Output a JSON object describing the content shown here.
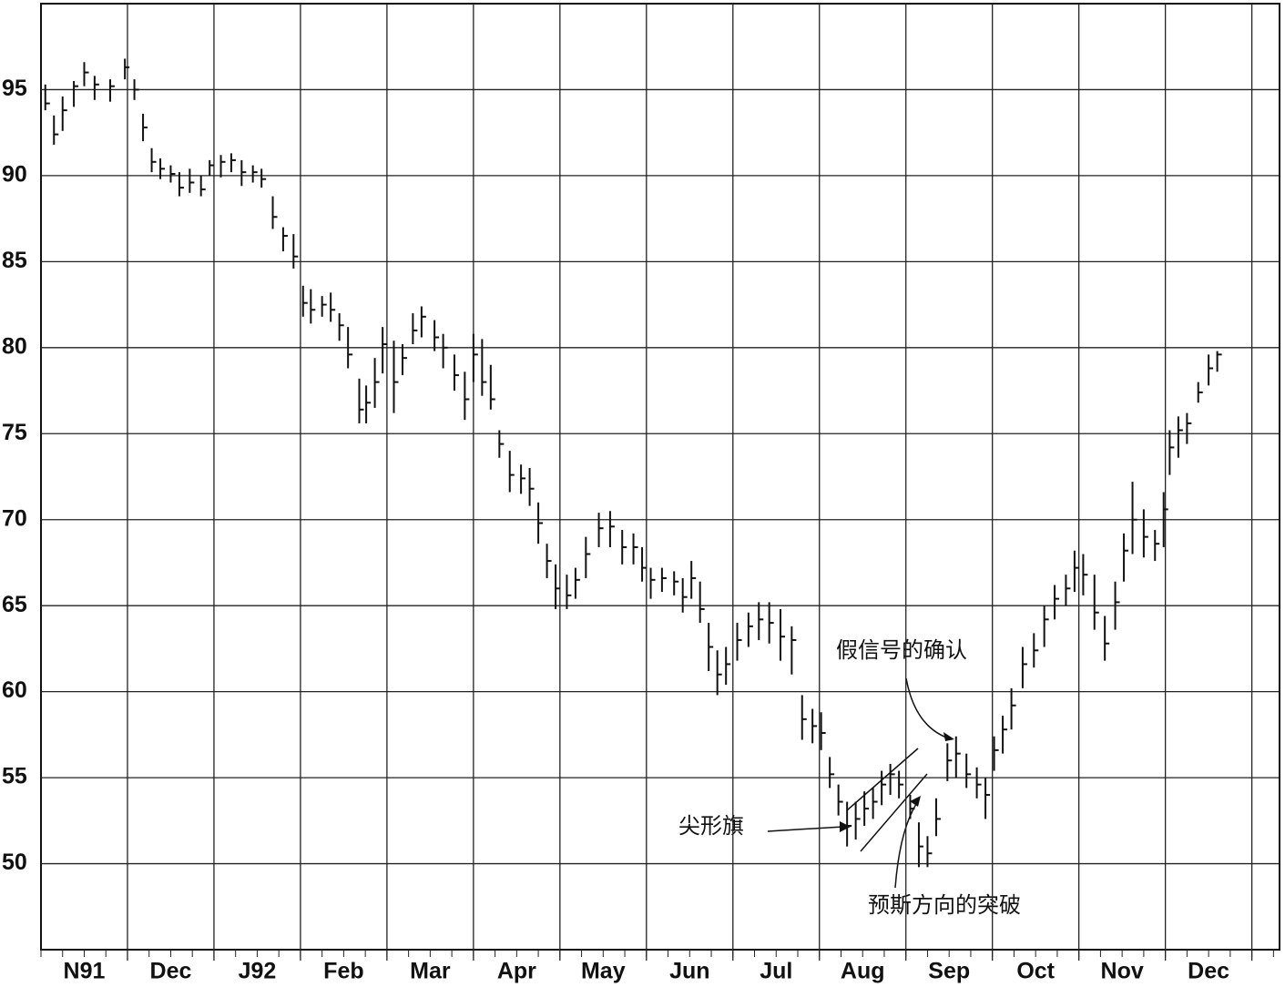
{
  "chart_data": {
    "type": "ohlc",
    "categories": [
      "N91",
      "Dec",
      "J92",
      "Feb",
      "Mar",
      "Apr",
      "May",
      "Jun",
      "Jul",
      "Aug",
      "Sep",
      "Oct",
      "Nov",
      "Dec",
      null
    ],
    "xlim": [
      0,
      14.32
    ],
    "ylim": [
      45,
      100
    ],
    "yticks": [
      50,
      55,
      60,
      65,
      70,
      75,
      80,
      85,
      90,
      95
    ],
    "grid": true,
    "color": "#111111",
    "annotations": [
      "假信号的确认",
      "尖形旗",
      "预斯方向的突破"
    ],
    "x": [
      0.05,
      0.15,
      0.25,
      0.38,
      0.5,
      0.62,
      0.8,
      0.97,
      1.08,
      1.18,
      1.28,
      1.38,
      1.5,
      1.6,
      1.72,
      1.85,
      1.95,
      2.08,
      2.2,
      2.32,
      2.45,
      2.55,
      2.68,
      2.8,
      2.92,
      3.03,
      3.12,
      3.25,
      3.35,
      3.45,
      3.55,
      3.68,
      3.76,
      3.86,
      3.95,
      4.08,
      4.18,
      4.3,
      4.4,
      4.55,
      4.65,
      4.78,
      4.9,
      5.0,
      5.1,
      5.2,
      5.3,
      5.42,
      5.55,
      5.65,
      5.75,
      5.85,
      5.95,
      6.08,
      6.18,
      6.3,
      6.45,
      6.58,
      6.72,
      6.85,
      6.95,
      7.05,
      7.18,
      7.32,
      7.42,
      7.52,
      7.62,
      7.72,
      7.82,
      7.92,
      8.05,
      8.18,
      8.3,
      8.42,
      8.55,
      8.68,
      8.8,
      8.92,
      9.02,
      9.12,
      9.22,
      9.32,
      9.42,
      9.52,
      9.62,
      9.72,
      9.82,
      9.92,
      10.05,
      10.15,
      10.25,
      10.35,
      10.48,
      10.58,
      10.7,
      10.82,
      10.92,
      11.02,
      11.12,
      11.22,
      11.35,
      11.48,
      11.6,
      11.72,
      11.85,
      11.95,
      12.05,
      12.18,
      12.3,
      12.42,
      12.52,
      12.62,
      12.75,
      12.88,
      12.98,
      13.05,
      13.15,
      13.25,
      13.38,
      13.5,
      13.6
    ],
    "high": [
      95.3,
      93.5,
      94.6,
      95.5,
      96.6,
      95.8,
      95.6,
      96.8,
      95.6,
      93.6,
      91.6,
      91,
      90.6,
      90.2,
      90.4,
      90,
      90.9,
      91.2,
      91.3,
      90.9,
      90.6,
      90.4,
      88.8,
      87,
      86.6,
      83.6,
      83.4,
      83,
      83.2,
      82,
      81.2,
      78.2,
      77.8,
      79.4,
      81.2,
      80.4,
      80.2,
      82,
      82.4,
      81.6,
      80.8,
      79.6,
      78.6,
      80.8,
      80.5,
      79,
      75.2,
      74,
      73.2,
      73,
      71,
      68.6,
      67.4,
      66.8,
      67.2,
      69,
      70.4,
      70.5,
      69.4,
      69.2,
      68.4,
      67.2,
      67.2,
      67,
      66.6,
      67.6,
      66.4,
      64,
      62.4,
      62.6,
      64,
      64.6,
      65.2,
      65.2,
      64.8,
      63.8,
      59.8,
      59,
      58.8,
      56.2,
      54.6,
      53.6,
      53.6,
      54.2,
      54.4,
      55.4,
      55.8,
      55.4,
      54,
      52.4,
      51.6,
      53.8,
      57,
      57.4,
      56.4,
      55.6,
      55,
      57.4,
      58.6,
      60.2,
      62.6,
      63.4,
      65,
      66.2,
      66.8,
      68.2,
      68,
      66.8,
      64.4,
      66.4,
      69.2,
      72.2,
      70.6,
      69.4,
      71.6,
      75.2,
      76,
      76.2,
      78,
      79.6,
      79.8
    ],
    "low": [
      93.8,
      91.8,
      92.6,
      94,
      95.2,
      94.4,
      94.3,
      95.6,
      94.4,
      92,
      90.2,
      89.8,
      89.6,
      88.8,
      89,
      88.8,
      90,
      89.9,
      90.2,
      89.4,
      89.6,
      89.3,
      86.9,
      85.6,
      84.6,
      81.8,
      81.4,
      81.8,
      81.5,
      80.4,
      78.8,
      75.6,
      75.6,
      76.5,
      78.5,
      76.2,
      78.4,
      80.2,
      80.6,
      79.8,
      78.8,
      77.5,
      75.8,
      78,
      77.2,
      76.4,
      73.6,
      71.6,
      71.5,
      70.8,
      68.6,
      66.6,
      64.8,
      64.8,
      65.4,
      66.6,
      68.4,
      68.4,
      67.4,
      67.4,
      66.4,
      65.4,
      65.8,
      65.6,
      64.6,
      65.4,
      64,
      61.2,
      59.8,
      60.4,
      61.8,
      62.6,
      63,
      62.8,
      61.8,
      61,
      57.2,
      57,
      56.6,
      54.4,
      52.8,
      51,
      51.4,
      52.2,
      52.6,
      53.4,
      54,
      53.8,
      52.6,
      49.8,
      49.8,
      51.6,
      54.8,
      55,
      54.4,
      53.8,
      52.6,
      55.4,
      56.4,
      57.8,
      60.2,
      61.4,
      62.6,
      64.2,
      65,
      65.8,
      65.6,
      63.6,
      61.8,
      63.6,
      66.4,
      68,
      67.8,
      67.6,
      68.4,
      72.6,
      73.6,
      74.4,
      76.8,
      77.8,
      78.6
    ],
    "close": [
      94.2,
      92.4,
      93.8,
      95.2,
      96,
      95.3,
      95.2,
      96.3,
      95,
      92.8,
      90.8,
      90.4,
      90.1,
      89.3,
      89.6,
      89.2,
      90.6,
      90.8,
      90.9,
      90.2,
      90.2,
      89.8,
      87.6,
      86.5,
      85.3,
      82.6,
      82.2,
      82.5,
      82.2,
      81.3,
      79.6,
      76.4,
      76.8,
      78,
      80.2,
      78,
      79.4,
      81,
      81.8,
      80.6,
      80,
      78.4,
      77,
      79.6,
      78,
      77,
      74.4,
      72.6,
      72.4,
      71.8,
      69.8,
      67.6,
      66,
      65.6,
      66.5,
      68,
      69.5,
      69.6,
      68.4,
      68.4,
      67.2,
      66.5,
      66.6,
      66.4,
      65.5,
      66.6,
      64.8,
      62.6,
      61,
      61.6,
      63,
      63.8,
      64.2,
      64,
      63.2,
      63,
      58.4,
      58,
      57.6,
      55.2,
      53.6,
      52.2,
      52.6,
      53.2,
      53.6,
      54.6,
      55.2,
      54.6,
      53.2,
      51,
      50.6,
      52.6,
      56,
      56.4,
      55.2,
      54.6,
      54,
      56.6,
      57.8,
      59.2,
      61.6,
      62.4,
      64.2,
      65.4,
      66,
      67.2,
      66.8,
      64.6,
      62.8,
      65.2,
      68.2,
      70,
      69,
      68.6,
      70.6,
      74.2,
      75.2,
      75.6,
      77.4,
      78.8,
      79.6
    ]
  }
}
